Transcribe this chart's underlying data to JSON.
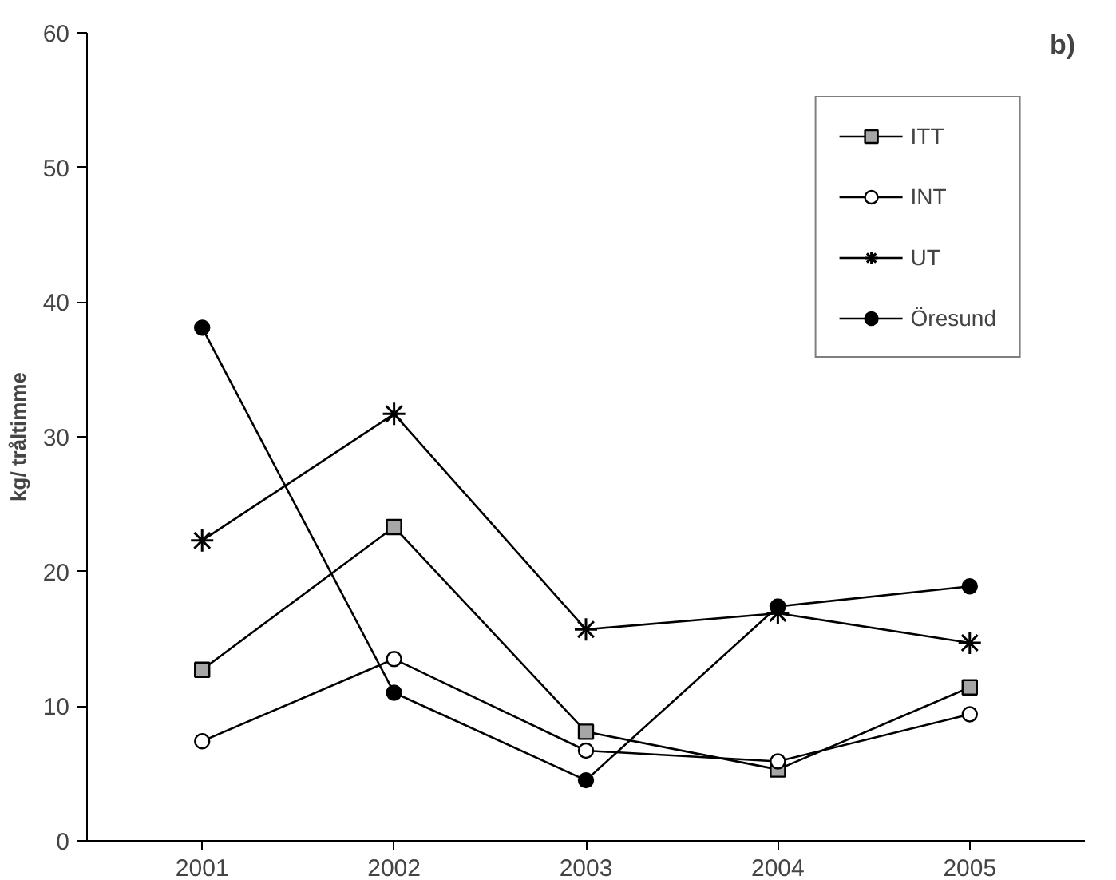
{
  "chart_data": {
    "type": "line",
    "ylabel": "kg/ tråltimme",
    "annotations": [
      "b)"
    ],
    "categories": [
      "2001",
      "2002",
      "2003",
      "2004",
      "2005"
    ],
    "ylim": [
      0,
      60
    ],
    "yticks": [
      0,
      10,
      20,
      30,
      40,
      50,
      60
    ],
    "grid": false,
    "legend": "top right",
    "series": [
      {
        "name": "ITT",
        "color": "#a6a6a6",
        "marker": "square",
        "values": [
          12.7,
          23.3,
          8.1,
          5.3,
          11.4
        ]
      },
      {
        "name": "INT",
        "color": "#ffffff",
        "marker": "circle",
        "values": [
          7.4,
          13.5,
          6.7,
          5.9,
          9.4
        ]
      },
      {
        "name": "UT",
        "color": "#000000",
        "marker": "cross",
        "values": [
          22.3,
          31.7,
          15.7,
          16.9,
          14.7
        ]
      },
      {
        "name": "Öresund",
        "color": "#000000",
        "marker": "circle",
        "values": [
          38.1,
          11.0,
          4.5,
          17.4,
          18.9
        ]
      }
    ]
  }
}
